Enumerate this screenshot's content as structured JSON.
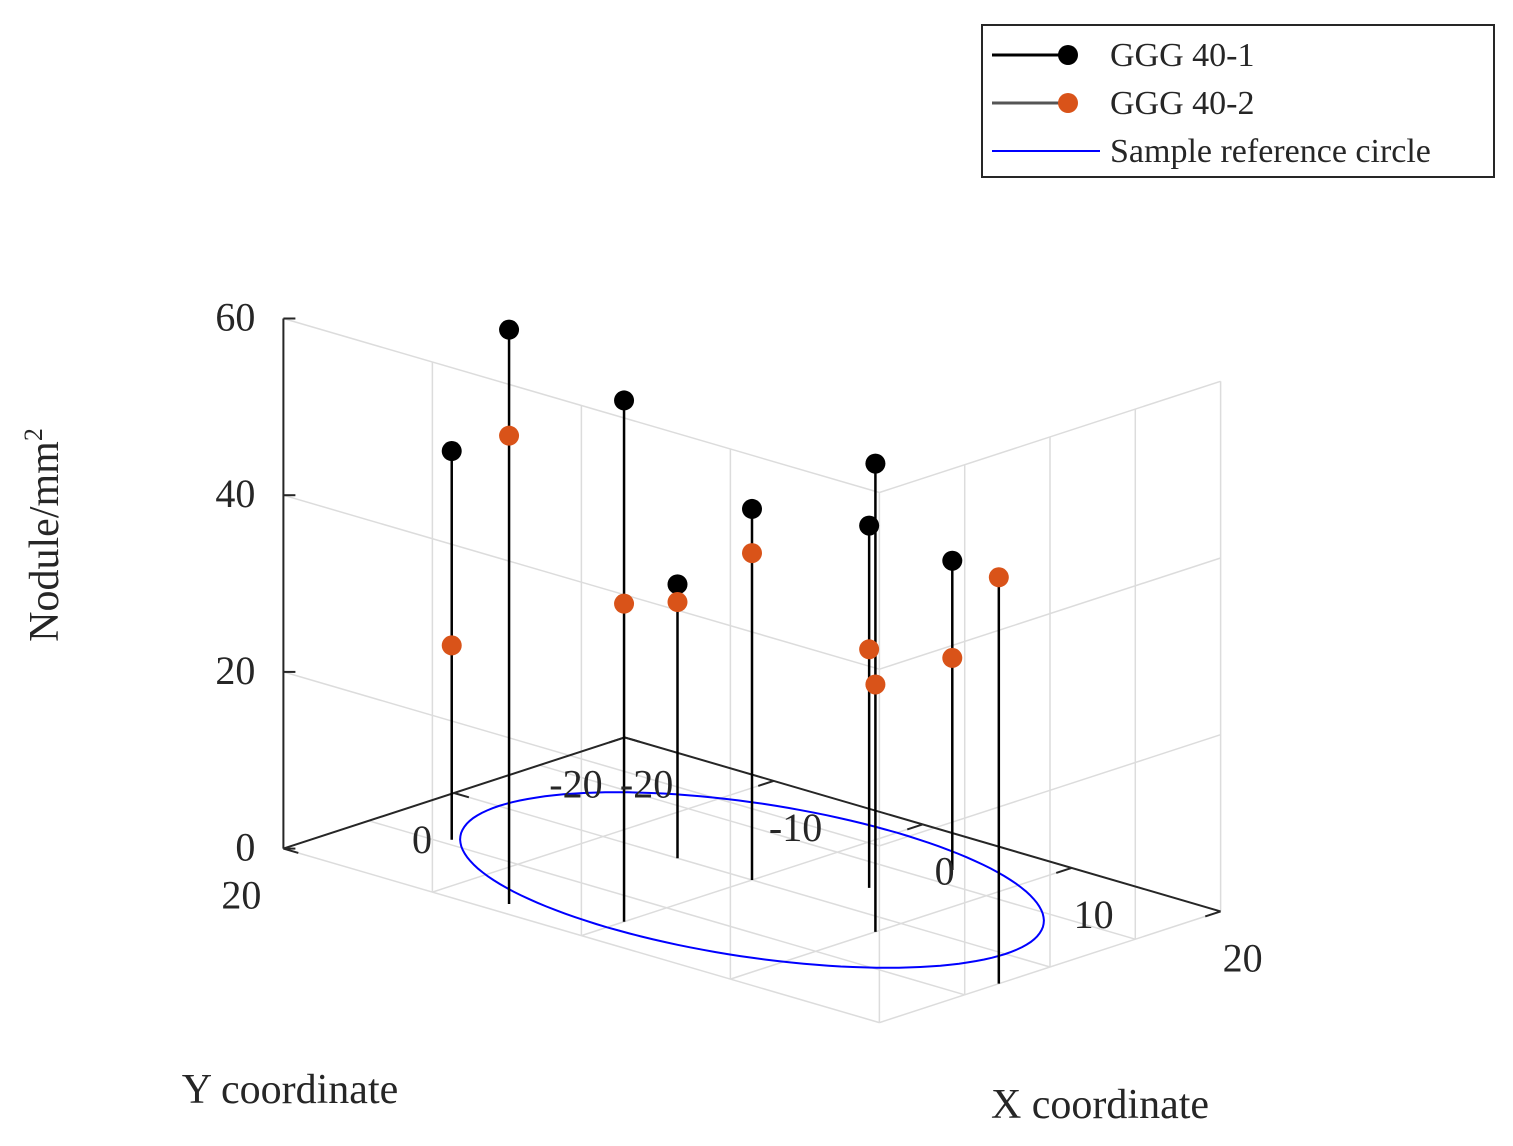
{
  "chart_data": {
    "type": "scatter",
    "subtype": "3d-stem",
    "title": "",
    "xlabel": "X coordinate",
    "ylabel": "Y coordinate",
    "zlabel": "Nodule/mm",
    "zlabel_sup": "2",
    "xlim": [
      -20,
      20
    ],
    "ylim": [
      -20,
      20
    ],
    "zlim": [
      0,
      60
    ],
    "x_ticks": [
      -20,
      -10,
      0,
      10,
      20
    ],
    "y_ticks": [
      -20,
      0,
      20
    ],
    "z_ticks": [
      0,
      20,
      40,
      60
    ],
    "grid": true,
    "legend_position": "top-right",
    "series": [
      {
        "name": "GGG 40-1",
        "color": "#000000",
        "points": [
          {
            "x": -15,
            "y": 9,
            "z": 44
          },
          {
            "x": -6,
            "y": 18,
            "z": 65
          },
          {
            "x": -5,
            "y": 0,
            "z": 31
          },
          {
            "x": 0,
            "y": 15,
            "z": 59
          },
          {
            "x": 0,
            "y": 0,
            "z": 42
          },
          {
            "x": 5,
            "y": -5,
            "z": 41
          },
          {
            "x": 10,
            "y": 3,
            "z": 53
          },
          {
            "x": 6,
            "y": -13,
            "z": 35
          }
        ]
      },
      {
        "name": "GGG 40-2",
        "color": "#D95319",
        "points": [
          {
            "x": -15,
            "y": 9,
            "z": 22
          },
          {
            "x": -6,
            "y": 18,
            "z": 53
          },
          {
            "x": -5,
            "y": 0,
            "z": 29
          },
          {
            "x": 0,
            "y": 15,
            "z": 36
          },
          {
            "x": 0,
            "y": 0,
            "z": 37
          },
          {
            "x": 5,
            "y": -5,
            "z": 27
          },
          {
            "x": 10,
            "y": 3,
            "z": 28
          },
          {
            "x": 20,
            "y": 6,
            "z": 46
          },
          {
            "x": 6,
            "y": -13,
            "z": 24
          }
        ]
      },
      {
        "name": "Sample reference circle",
        "color": "#0000FF",
        "shape": "circle",
        "center": {
          "x": 0,
          "y": 0,
          "z": 0
        },
        "radius": 17
      }
    ]
  }
}
